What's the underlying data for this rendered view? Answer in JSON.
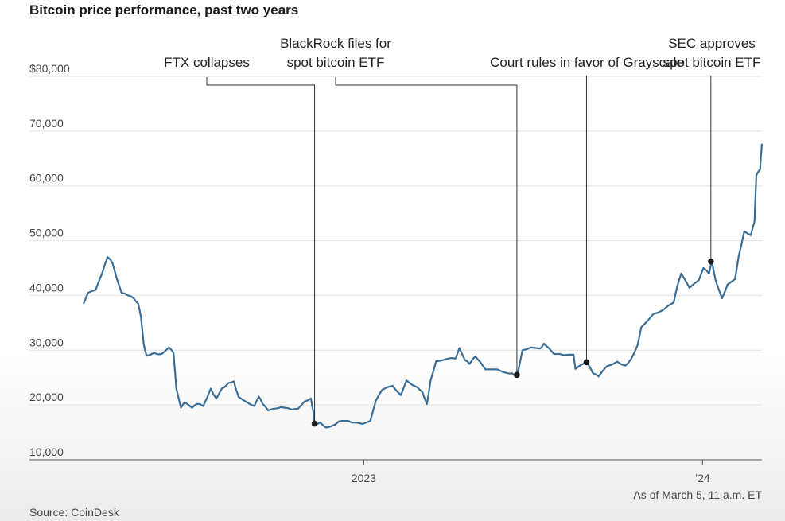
{
  "chart_data": {
    "type": "line",
    "title": "Bitcoin price performance, past two years",
    "source": "Source: CoinDesk",
    "note": "As of March 5, 11 a.m. ET",
    "y_ticks": [
      {
        "value": 80000,
        "label": "$80,000"
      },
      {
        "value": 70000,
        "label": "70,000"
      },
      {
        "value": 60000,
        "label": "60,000"
      },
      {
        "value": 50000,
        "label": "50,000"
      },
      {
        "value": 40000,
        "label": "40,000"
      },
      {
        "value": 30000,
        "label": "30,000"
      },
      {
        "value": 20000,
        "label": "20,000"
      },
      {
        "value": 10000,
        "label": "10,000"
      }
    ],
    "ylim": [
      10000,
      80000
    ],
    "xlim": [
      "2022-03-05",
      "2024-03-05"
    ],
    "x_ticks": [
      {
        "date": "2023-01-01",
        "label": "2023"
      },
      {
        "date": "2024-01-01",
        "label": "’24"
      }
    ],
    "grid": true,
    "series": [
      {
        "color": "#3b6e96",
        "points": [
          [
            "2022-03-05",
            38500
          ],
          [
            "2022-03-10",
            40500
          ],
          [
            "2022-03-18",
            41000
          ],
          [
            "2022-03-25",
            44000
          ],
          [
            "2022-03-31",
            47000
          ],
          [
            "2022-04-05",
            46000
          ],
          [
            "2022-04-10",
            43000
          ],
          [
            "2022-04-15",
            40500
          ],
          [
            "2022-04-22",
            40000
          ],
          [
            "2022-04-28",
            39500
          ],
          [
            "2022-05-03",
            38500
          ],
          [
            "2022-05-06",
            36000
          ],
          [
            "2022-05-09",
            31000
          ],
          [
            "2022-05-12",
            29000
          ],
          [
            "2022-05-20",
            29500
          ],
          [
            "2022-05-28",
            29300
          ],
          [
            "2022-06-05",
            30500
          ],
          [
            "2022-06-10",
            29500
          ],
          [
            "2022-06-13",
            23000
          ],
          [
            "2022-06-18",
            19500
          ],
          [
            "2022-06-22",
            20500
          ],
          [
            "2022-06-30",
            19500
          ],
          [
            "2022-07-05",
            20200
          ],
          [
            "2022-07-12",
            19800
          ],
          [
            "2022-07-20",
            23000
          ],
          [
            "2022-07-26",
            21200
          ],
          [
            "2022-08-01",
            23000
          ],
          [
            "2022-08-08",
            24000
          ],
          [
            "2022-08-14",
            24300
          ],
          [
            "2022-08-19",
            21500
          ],
          [
            "2022-08-28",
            20500
          ],
          [
            "2022-09-05",
            19800
          ],
          [
            "2022-09-10",
            21500
          ],
          [
            "2022-09-14",
            20200
          ],
          [
            "2022-09-20",
            19000
          ],
          [
            "2022-09-30",
            19400
          ],
          [
            "2022-10-08",
            19500
          ],
          [
            "2022-10-15",
            19200
          ],
          [
            "2022-10-22",
            19300
          ],
          [
            "2022-10-29",
            20600
          ],
          [
            "2022-11-05",
            21200
          ],
          [
            "2022-11-08",
            18500
          ],
          [
            "2022-11-09",
            16500
          ],
          [
            "2022-11-15",
            16800
          ],
          [
            "2022-11-21",
            15900
          ],
          [
            "2022-11-28",
            16200
          ],
          [
            "2022-12-05",
            17000
          ],
          [
            "2022-12-12",
            17100
          ],
          [
            "2022-12-19",
            16800
          ],
          [
            "2022-12-31",
            16550
          ],
          [
            "2023-01-08",
            17100
          ],
          [
            "2023-01-14",
            20800
          ],
          [
            "2023-01-21",
            22800
          ],
          [
            "2023-02-01",
            23500
          ],
          [
            "2023-02-10",
            21800
          ],
          [
            "2023-02-16",
            24500
          ],
          [
            "2023-02-28",
            23200
          ],
          [
            "2023-03-05",
            22400
          ],
          [
            "2023-03-10",
            20200
          ],
          [
            "2023-03-14",
            24500
          ],
          [
            "2023-03-20",
            28000
          ],
          [
            "2023-03-31",
            28400
          ],
          [
            "2023-04-10",
            28500
          ],
          [
            "2023-04-14",
            30400
          ],
          [
            "2023-04-20",
            28200
          ],
          [
            "2023-04-25",
            27500
          ],
          [
            "2023-05-01",
            28900
          ],
          [
            "2023-05-12",
            26500
          ],
          [
            "2023-05-25",
            26500
          ],
          [
            "2023-06-05",
            25800
          ],
          [
            "2023-06-10",
            25800
          ],
          [
            "2023-06-15",
            25100
          ],
          [
            "2023-06-21",
            30000
          ],
          [
            "2023-06-30",
            30500
          ],
          [
            "2023-07-10",
            30300
          ],
          [
            "2023-07-14",
            31200
          ],
          [
            "2023-07-25",
            29300
          ],
          [
            "2023-08-05",
            29100
          ],
          [
            "2023-08-15",
            29200
          ],
          [
            "2023-08-17",
            26600
          ],
          [
            "2023-08-29",
            27800
          ],
          [
            "2023-09-05",
            25800
          ],
          [
            "2023-09-11",
            25200
          ],
          [
            "2023-09-20",
            27100
          ],
          [
            "2023-10-01",
            27900
          ],
          [
            "2023-10-10",
            27200
          ],
          [
            "2023-10-16",
            28400
          ],
          [
            "2023-10-23",
            30900
          ],
          [
            "2023-10-27",
            34200
          ],
          [
            "2023-11-09",
            36600
          ],
          [
            "2023-11-20",
            37400
          ],
          [
            "2023-12-01",
            38700
          ],
          [
            "2023-12-05",
            41800
          ],
          [
            "2023-12-09",
            44000
          ],
          [
            "2023-12-18",
            41400
          ],
          [
            "2023-12-28",
            42800
          ],
          [
            "2024-01-02",
            45000
          ],
          [
            "2024-01-08",
            44000
          ],
          [
            "2024-01-11",
            46300
          ],
          [
            "2024-01-15",
            42800
          ],
          [
            "2024-01-22",
            39500
          ],
          [
            "2024-01-28",
            42000
          ],
          [
            "2024-02-05",
            43000
          ],
          [
            "2024-02-09",
            47200
          ],
          [
            "2024-02-15",
            51700
          ],
          [
            "2024-02-22",
            51000
          ],
          [
            "2024-02-26",
            53500
          ],
          [
            "2024-02-28",
            62000
          ],
          [
            "2024-03-03",
            63000
          ],
          [
            "2024-03-05",
            67700
          ]
        ]
      }
    ],
    "annotations": [
      {
        "lines": [
          "FTX collapses"
        ],
        "date": "2022-11-09",
        "value": 16600,
        "marker": true
      },
      {
        "lines": [
          "BlackRock files for",
          "spot bitcoin ETF"
        ],
        "date": "2023-06-15",
        "value": 25500,
        "marker": true
      },
      {
        "lines": [
          "Court rules in favor of Grayscale"
        ],
        "date": "2023-08-29",
        "value": 27800,
        "marker": true
      },
      {
        "lines": [
          "SEC approves",
          "spot bitcoin ETF"
        ],
        "date": "2024-01-10",
        "value": 46200,
        "marker": true
      }
    ]
  }
}
